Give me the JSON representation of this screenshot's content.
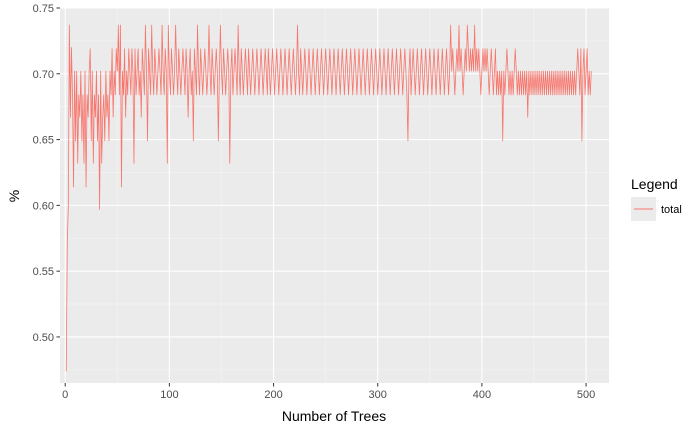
{
  "chart_data": {
    "type": "line",
    "title": "",
    "xlabel": "Number of Trees",
    "ylabel": "%",
    "xlim": [
      -5,
      522
    ],
    "ylim": [
      0.465,
      0.75
    ],
    "x_ticks": [
      0,
      100,
      200,
      300,
      400,
      500
    ],
    "x_tick_labels": [
      "0",
      "100",
      "200",
      "300",
      "400",
      "500"
    ],
    "y_ticks": [
      0.5,
      0.55,
      0.6,
      0.65,
      0.7,
      0.75
    ],
    "y_tick_labels": [
      "0.50",
      "0.55",
      "0.60",
      "0.65",
      "0.70",
      "0.75"
    ],
    "grid": true,
    "legend_position": "right",
    "legend": {
      "title": "Legend",
      "entries": [
        "total"
      ]
    },
    "series": [
      {
        "name": "total",
        "color": "#F8766D",
        "x_start": 1,
        "x_step": 1,
        "values": [
          0.474,
          0.571,
          0.6,
          0.737,
          0.667,
          0.72,
          0.684,
          0.614,
          0.702,
          0.649,
          0.702,
          0.632,
          0.684,
          0.667,
          0.702,
          0.649,
          0.684,
          0.632,
          0.702,
          0.614,
          0.684,
          0.667,
          0.702,
          0.719,
          0.649,
          0.702,
          0.632,
          0.684,
          0.667,
          0.702,
          0.649,
          0.684,
          0.597,
          0.702,
          0.632,
          0.667,
          0.684,
          0.649,
          0.702,
          0.667,
          0.684,
          0.649,
          0.702,
          0.684,
          0.719,
          0.667,
          0.702,
          0.684,
          0.719,
          0.702,
          0.737,
          0.684,
          0.737,
          0.614,
          0.702,
          0.684,
          0.719,
          0.667,
          0.702,
          0.684,
          0.719,
          0.702,
          0.684,
          0.719,
          0.702,
          0.632,
          0.719,
          0.684,
          0.702,
          0.719,
          0.684,
          0.702,
          0.667,
          0.719,
          0.702,
          0.684,
          0.737,
          0.702,
          0.649,
          0.719,
          0.702,
          0.684,
          0.737,
          0.702,
          0.684,
          0.719,
          0.702,
          0.684,
          0.702,
          0.719,
          0.702,
          0.684,
          0.737,
          0.702,
          0.684,
          0.719,
          0.702,
          0.632,
          0.737,
          0.702,
          0.684,
          0.719,
          0.702,
          0.684,
          0.702,
          0.737,
          0.702,
          0.684,
          0.719,
          0.702,
          0.684,
          0.702,
          0.719,
          0.702,
          0.684,
          0.719,
          0.702,
          0.667,
          0.702,
          0.719,
          0.684,
          0.702,
          0.649,
          0.719,
          0.702,
          0.684,
          0.737,
          0.702,
          0.684,
          0.719,
          0.702,
          0.684,
          0.702,
          0.719,
          0.702,
          0.684,
          0.702,
          0.737,
          0.702,
          0.684,
          0.719,
          0.702,
          0.684,
          0.702,
          0.719,
          0.702,
          0.649,
          0.702,
          0.737,
          0.702,
          0.684,
          0.719,
          0.702,
          0.684,
          0.702,
          0.719,
          0.702,
          0.632,
          0.702,
          0.719,
          0.684,
          0.702,
          0.719,
          0.702,
          0.684,
          0.737,
          0.702,
          0.684,
          0.719,
          0.702,
          0.684,
          0.702,
          0.719,
          0.702,
          0.684,
          0.719,
          0.702,
          0.684,
          0.702,
          0.719,
          0.702,
          0.684,
          0.702,
          0.719,
          0.702,
          0.684,
          0.702,
          0.719,
          0.702,
          0.684,
          0.702,
          0.719,
          0.702,
          0.684,
          0.719,
          0.702,
          0.684,
          0.702,
          0.719,
          0.702,
          0.684,
          0.702,
          0.719,
          0.702,
          0.684,
          0.702,
          0.719,
          0.702,
          0.684,
          0.702,
          0.719,
          0.702,
          0.684,
          0.702,
          0.719,
          0.702,
          0.684,
          0.702,
          0.719,
          0.702,
          0.684,
          0.702,
          0.737,
          0.702,
          0.684,
          0.719,
          0.702,
          0.684,
          0.702,
          0.719,
          0.702,
          0.684,
          0.702,
          0.719,
          0.702,
          0.684,
          0.702,
          0.719,
          0.702,
          0.684,
          0.702,
          0.719,
          0.702,
          0.684,
          0.702,
          0.719,
          0.702,
          0.684,
          0.702,
          0.719,
          0.702,
          0.684,
          0.702,
          0.719,
          0.702,
          0.684,
          0.702,
          0.719,
          0.702,
          0.684,
          0.702,
          0.719,
          0.702,
          0.684,
          0.702,
          0.719,
          0.702,
          0.684,
          0.702,
          0.719,
          0.702,
          0.684,
          0.702,
          0.719,
          0.702,
          0.684,
          0.702,
          0.719,
          0.702,
          0.684,
          0.702,
          0.719,
          0.702,
          0.684,
          0.702,
          0.719,
          0.702,
          0.684,
          0.702,
          0.719,
          0.702,
          0.684,
          0.702,
          0.719,
          0.702,
          0.684,
          0.702,
          0.719,
          0.702,
          0.684,
          0.702,
          0.719,
          0.702,
          0.684,
          0.702,
          0.719,
          0.702,
          0.684,
          0.702,
          0.719,
          0.702,
          0.684,
          0.702,
          0.719,
          0.702,
          0.684,
          0.702,
          0.719,
          0.702,
          0.684,
          0.702,
          0.719,
          0.702,
          0.684,
          0.702,
          0.719,
          0.702,
          0.684,
          0.649,
          0.702,
          0.719,
          0.684,
          0.702,
          0.719,
          0.702,
          0.684,
          0.702,
          0.719,
          0.702,
          0.684,
          0.702,
          0.719,
          0.702,
          0.684,
          0.702,
          0.719,
          0.702,
          0.684,
          0.702,
          0.719,
          0.702,
          0.684,
          0.702,
          0.719,
          0.702,
          0.684,
          0.702,
          0.719,
          0.702,
          0.684,
          0.702,
          0.719,
          0.702,
          0.684,
          0.702,
          0.719,
          0.702,
          0.684,
          0.702,
          0.737,
          0.702,
          0.719,
          0.702,
          0.684,
          0.702,
          0.719,
          0.702,
          0.737,
          0.702,
          0.719,
          0.702,
          0.684,
          0.702,
          0.719,
          0.702,
          0.737,
          0.719,
          0.702,
          0.719,
          0.702,
          0.719,
          0.702,
          0.737,
          0.702,
          0.719,
          0.702,
          0.719,
          0.702,
          0.684,
          0.702,
          0.719,
          0.702,
          0.719,
          0.702,
          0.719,
          0.702,
          0.684,
          0.702,
          0.719,
          0.702,
          0.684,
          0.702,
          0.719,
          0.684,
          0.702,
          0.684,
          0.702,
          0.684,
          0.702,
          0.649,
          0.702,
          0.684,
          0.702,
          0.719,
          0.702,
          0.684,
          0.702,
          0.684,
          0.702,
          0.684,
          0.702,
          0.719,
          0.702,
          0.684,
          0.702,
          0.684,
          0.702,
          0.684,
          0.702,
          0.684,
          0.702,
          0.684,
          0.702,
          0.667,
          0.702,
          0.684,
          0.702,
          0.684,
          0.702,
          0.684,
          0.702,
          0.684,
          0.702,
          0.684,
          0.702,
          0.684,
          0.702,
          0.684,
          0.702,
          0.684,
          0.702,
          0.684,
          0.702,
          0.684,
          0.702,
          0.684,
          0.702,
          0.684,
          0.702,
          0.684,
          0.702,
          0.684,
          0.702,
          0.684,
          0.702,
          0.684,
          0.702,
          0.684,
          0.702,
          0.684,
          0.702,
          0.684,
          0.702,
          0.684,
          0.702,
          0.684,
          0.702,
          0.684,
          0.702,
          0.684,
          0.702,
          0.719,
          0.702,
          0.684,
          0.719,
          0.649,
          0.702,
          0.719,
          0.684,
          0.702,
          0.719,
          0.684,
          0.702,
          0.684,
          0.702
        ]
      }
    ]
  }
}
